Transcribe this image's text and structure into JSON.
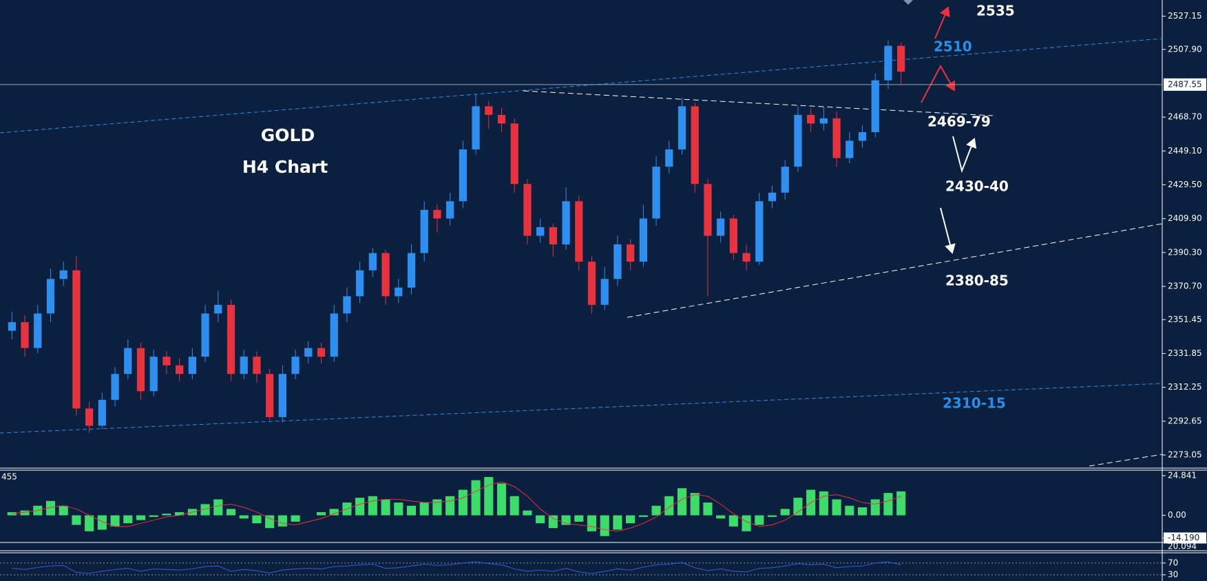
{
  "chart_data": [
    {
      "type": "candlestick",
      "title": "GOLD",
      "subtitle": "H4 Chart",
      "up_color": "#2f8ff0",
      "down_color": "#e8333f",
      "open": [
        2345,
        2350,
        2335,
        2355,
        2375,
        2380,
        2300,
        2290,
        2305,
        2320,
        2335,
        2310,
        2330,
        2325,
        2320,
        2330,
        2355,
        2360,
        2320,
        2330,
        2320,
        2295,
        2320,
        2330,
        2335,
        2330,
        2355,
        2365,
        2380,
        2390,
        2365,
        2370,
        2390,
        2415,
        2410,
        2420,
        2450,
        2475,
        2470,
        2465,
        2430,
        2400,
        2405,
        2395,
        2420,
        2385,
        2360,
        2375,
        2395,
        2385,
        2410,
        2440,
        2450,
        2475,
        2430,
        2400,
        2410,
        2390,
        2385,
        2420,
        2425,
        2440,
        2470,
        2465,
        2468,
        2445,
        2455,
        2460,
        2490,
        2510
      ],
      "high": [
        2356,
        2354,
        2360,
        2381,
        2385,
        2388,
        2304,
        2309,
        2324,
        2340,
        2338,
        2334,
        2333,
        2329,
        2335,
        2360,
        2368,
        2363,
        2334,
        2333,
        2323,
        2325,
        2334,
        2339,
        2338,
        2360,
        2370,
        2385,
        2393,
        2392,
        2375,
        2395,
        2420,
        2418,
        2425,
        2455,
        2482,
        2478,
        2474,
        2468,
        2433,
        2410,
        2407,
        2428,
        2423,
        2388,
        2382,
        2400,
        2398,
        2418,
        2446,
        2455,
        2480,
        2477,
        2433,
        2414,
        2412,
        2395,
        2425,
        2429,
        2444,
        2475,
        2474,
        2475,
        2472,
        2460,
        2464,
        2494,
        2513,
        2512
      ],
      "low": [
        2340,
        2330,
        2332,
        2350,
        2371,
        2296,
        2286,
        2288,
        2301,
        2317,
        2305,
        2307,
        2320,
        2316,
        2317,
        2327,
        2350,
        2316,
        2317,
        2315,
        2293,
        2292,
        2317,
        2326,
        2326,
        2327,
        2350,
        2361,
        2376,
        2360,
        2361,
        2366,
        2385,
        2402,
        2406,
        2416,
        2447,
        2462,
        2460,
        2425,
        2395,
        2396,
        2388,
        2392,
        2380,
        2355,
        2357,
        2371,
        2380,
        2382,
        2406,
        2436,
        2447,
        2425,
        2365,
        2396,
        2386,
        2380,
        2383,
        2416,
        2421,
        2437,
        2460,
        2461,
        2440,
        2442,
        2451,
        2457,
        2485,
        2488
      ],
      "close": [
        2350,
        2335,
        2355,
        2375,
        2380,
        2300,
        2290,
        2305,
        2320,
        2335,
        2310,
        2330,
        2325,
        2320,
        2330,
        2355,
        2360,
        2320,
        2330,
        2320,
        2295,
        2320,
        2330,
        2335,
        2330,
        2355,
        2365,
        2380,
        2390,
        2365,
        2370,
        2390,
        2415,
        2410,
        2420,
        2450,
        2475,
        2470,
        2465,
        2430,
        2400,
        2405,
        2395,
        2420,
        2385,
        2360,
        2375,
        2395,
        2385,
        2410,
        2440,
        2450,
        2475,
        2430,
        2400,
        2410,
        2390,
        2385,
        2420,
        2425,
        2440,
        2470,
        2465,
        2468,
        2445,
        2455,
        2460,
        2490,
        2510,
        2495
      ],
      "ylim": [
        2265.88,
        2536.52
      ],
      "yticks": [
        2527.15,
        {
          "value": 2507.9,
          "label": "2507.90"
        },
        {
          "value": 2468.7,
          "label": "2468.70"
        },
        {
          "value": 2449.1,
          "label": "2449.10"
        },
        {
          "value": 2429.5,
          "label": "2429.50"
        },
        {
          "value": 2409.9,
          "label": "2409.90"
        },
        {
          "value": 2390.3,
          "label": "2390.30"
        },
        {
          "value": 2370.7,
          "label": "2370.70"
        },
        2351.45,
        2331.85,
        2312.25,
        2292.65,
        2273.05
      ],
      "current_price": 2487.55,
      "annotations": [
        {
          "text": "2535",
          "color": "#ffffff"
        },
        {
          "text": "2510",
          "color": "#2b8fea"
        },
        {
          "text": "2469-79",
          "color": "#ffffff"
        },
        {
          "text": "2430-40",
          "color": "#ffffff"
        },
        {
          "text": "2380-85",
          "color": "#ffffff"
        },
        {
          "text": "2310-15",
          "color": "#2b8fea"
        }
      ]
    },
    {
      "type": "histogram",
      "label": "455",
      "color": "#3ddc6a",
      "signal_color": "#e8333f",
      "values": [
        2,
        3,
        6,
        9,
        6,
        -6,
        -10,
        -9,
        -7,
        -5,
        -3,
        -1,
        1,
        2,
        4,
        7,
        10,
        4,
        -2,
        -5,
        -8,
        -7,
        -4,
        0,
        2,
        4,
        8,
        11,
        12,
        10,
        8,
        6,
        8,
        10,
        12,
        16,
        22,
        24,
        20,
        12,
        3,
        -5,
        -8,
        -6,
        -4,
        -10,
        -13,
        -9,
        -5,
        -1,
        6,
        12,
        17,
        14,
        8,
        -2,
        -7,
        -10,
        -6,
        -1,
        4,
        11,
        16,
        15,
        10,
        6,
        5,
        10,
        14,
        15
      ],
      "signal": [
        1,
        2,
        3,
        5,
        6,
        4,
        0,
        -4,
        -7,
        -7,
        -5,
        -3,
        -1,
        0,
        2,
        4,
        6,
        7,
        5,
        2,
        -2,
        -5,
        -6,
        -4,
        -2,
        1,
        4,
        7,
        9,
        10,
        10,
        9,
        8,
        8,
        9,
        11,
        15,
        19,
        21,
        18,
        12,
        4,
        -2,
        -5,
        -6,
        -7,
        -9,
        -10,
        -8,
        -5,
        -1,
        5,
        10,
        13,
        12,
        7,
        1,
        -4,
        -7,
        -6,
        -3,
        2,
        8,
        12,
        13,
        11,
        8,
        7,
        9,
        12
      ],
      "ylim": [
        -17,
        28.3
      ],
      "yticks": [
        24.841,
        {
          "value": 0,
          "label": "0.00"
        },
        {
          "value": -14.19,
          "label": "-14.190"
        }
      ],
      "extra_label": "20.094"
    },
    {
      "type": "line",
      "color": "#3a5be0",
      "values": [
        52,
        48,
        55,
        60,
        62,
        38,
        35,
        42,
        48,
        52,
        42,
        50,
        48,
        46,
        50,
        58,
        60,
        42,
        48,
        44,
        36,
        46,
        50,
        52,
        50,
        58,
        60,
        64,
        66,
        52,
        54,
        60,
        66,
        62,
        64,
        70,
        74,
        68,
        64,
        50,
        42,
        46,
        42,
        52,
        40,
        34,
        42,
        50,
        46,
        56,
        64,
        66,
        72,
        54,
        44,
        50,
        42,
        40,
        52,
        54,
        60,
        68,
        64,
        66,
        54,
        58,
        60,
        70,
        74,
        64
      ],
      "ylim": [
        8.8,
        105
      ],
      "yticks": [
        70,
        30
      ]
    }
  ]
}
